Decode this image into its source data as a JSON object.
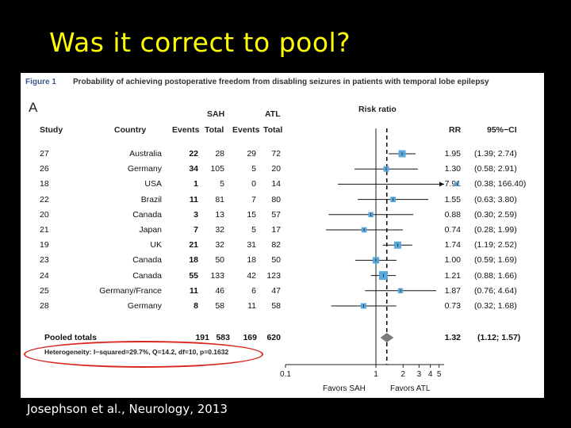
{
  "slide": {
    "title": "Was it correct to pool?",
    "citation": "Josephson et al., Neurology, 2013"
  },
  "figure": {
    "label": "Figure 1",
    "caption": "Probability of achieving postoperative freedom from disabling seizures in patients with temporal lobe epilepsy",
    "panel": "A",
    "group_headers": {
      "sah": "SAH",
      "atl": "ATL",
      "risk_ratio": "Risk ratio"
    },
    "columns": {
      "study": "Study",
      "country": "Country",
      "events1": "Events",
      "total1": "Total",
      "events2": "Events",
      "total2": "Total",
      "rr": "RR",
      "ci": "95%−CI"
    },
    "rows": [
      {
        "study": "27",
        "country": "Australia",
        "events1": "22",
        "total1": "28",
        "events2": "29",
        "total2": "72",
        "rr": "1.95",
        "ci": "(1.39; 2.74)",
        "rr_value": 1.95,
        "lo": 1.39,
        "hi": 2.74,
        "weight": 1.0
      },
      {
        "study": "26",
        "country": "Germany",
        "events1": "34",
        "total1": "105",
        "events2": "5",
        "total2": "20",
        "rr": "1.30",
        "ci": "(0.58; 2.91)",
        "rr_value": 1.3,
        "lo": 0.58,
        "hi": 2.91,
        "weight": 0.6
      },
      {
        "study": "18",
        "country": "USA",
        "events1": "1",
        "total1": "5",
        "events2": "0",
        "total2": "14",
        "rr": "7.91",
        "ci": "(0.38; 166.40)",
        "rr_value": 7.91,
        "lo": 0.38,
        "hi": 166.4,
        "weight": 0.2
      },
      {
        "study": "22",
        "country": "Brazil",
        "events1": "11",
        "total1": "81",
        "events2": "7",
        "total2": "80",
        "rr": "1.55",
        "ci": "(0.63; 3.80)",
        "rr_value": 1.55,
        "lo": 0.63,
        "hi": 3.8,
        "weight": 0.55
      },
      {
        "study": "20",
        "country": "Canada",
        "events1": "3",
        "total1": "13",
        "events2": "15",
        "total2": "57",
        "rr": "0.88",
        "ci": "(0.30; 2.59)",
        "rr_value": 0.88,
        "lo": 0.3,
        "hi": 2.59,
        "weight": 0.5
      },
      {
        "study": "21",
        "country": "Japan",
        "events1": "7",
        "total1": "32",
        "events2": "5",
        "total2": "17",
        "rr": "0.74",
        "ci": "(0.28; 1.99)",
        "rr_value": 0.74,
        "lo": 0.28,
        "hi": 1.99,
        "weight": 0.55
      },
      {
        "study": "19",
        "country": "UK",
        "events1": "21",
        "total1": "32",
        "events2": "31",
        "total2": "82",
        "rr": "1.74",
        "ci": "(1.19; 2.52)",
        "rr_value": 1.74,
        "lo": 1.19,
        "hi": 2.52,
        "weight": 1.0
      },
      {
        "study": "23",
        "country": "Canada",
        "events1": "18",
        "total1": "50",
        "events2": "18",
        "total2": "50",
        "rr": "1.00",
        "ci": "(0.59; 1.69)",
        "rr_value": 1.0,
        "lo": 0.59,
        "hi": 1.69,
        "weight": 0.85
      },
      {
        "study": "24",
        "country": "Canada",
        "events1": "55",
        "total1": "133",
        "events2": "42",
        "total2": "123",
        "rr": "1.21",
        "ci": "(0.88; 1.66)",
        "rr_value": 1.21,
        "lo": 0.88,
        "hi": 1.66,
        "weight": 1.4
      },
      {
        "study": "25",
        "country": "Germany/France",
        "events1": "11",
        "total1": "46",
        "events2": "6",
        "total2": "47",
        "rr": "1.87",
        "ci": "(0.76; 4.64)",
        "rr_value": 1.87,
        "lo": 0.76,
        "hi": 4.64,
        "weight": 0.5
      },
      {
        "study": "28",
        "country": "Germany",
        "events1": "8",
        "total1": "58",
        "events2": "11",
        "total2": "58",
        "rr": "0.73",
        "ci": "(0.32; 1.68)",
        "rr_value": 0.73,
        "lo": 0.32,
        "hi": 1.68,
        "weight": 0.6
      }
    ],
    "pooled": {
      "label": "Pooled totals",
      "events1": "191",
      "total1": "583",
      "events2": "169",
      "total2": "620",
      "rr": "1.32",
      "ci": "(1.12;   1.57)",
      "rr_value": 1.32,
      "lo": 1.12,
      "hi": 1.57
    },
    "heterogeneity": "Heterogeneity: I−squared=29.7%, Q=14.2, df=10, p=0.1632",
    "axis": {
      "ticks": [
        {
          "value": 0.1,
          "label": "0.1"
        },
        {
          "value": 1,
          "label": "1"
        },
        {
          "value": 2,
          "label": "2"
        },
        {
          "value": 3,
          "label": "3"
        },
        {
          "value": 4,
          "label": "4"
        },
        {
          "value": 5,
          "label": "5"
        }
      ],
      "favors_left": "Favors SAH",
      "favors_right": "Favors  ATL"
    }
  },
  "colors": {
    "title": "#ffff00",
    "square": "#5aa9dc",
    "diamond": "#7a7a7a",
    "oval": "#d8261e"
  }
}
